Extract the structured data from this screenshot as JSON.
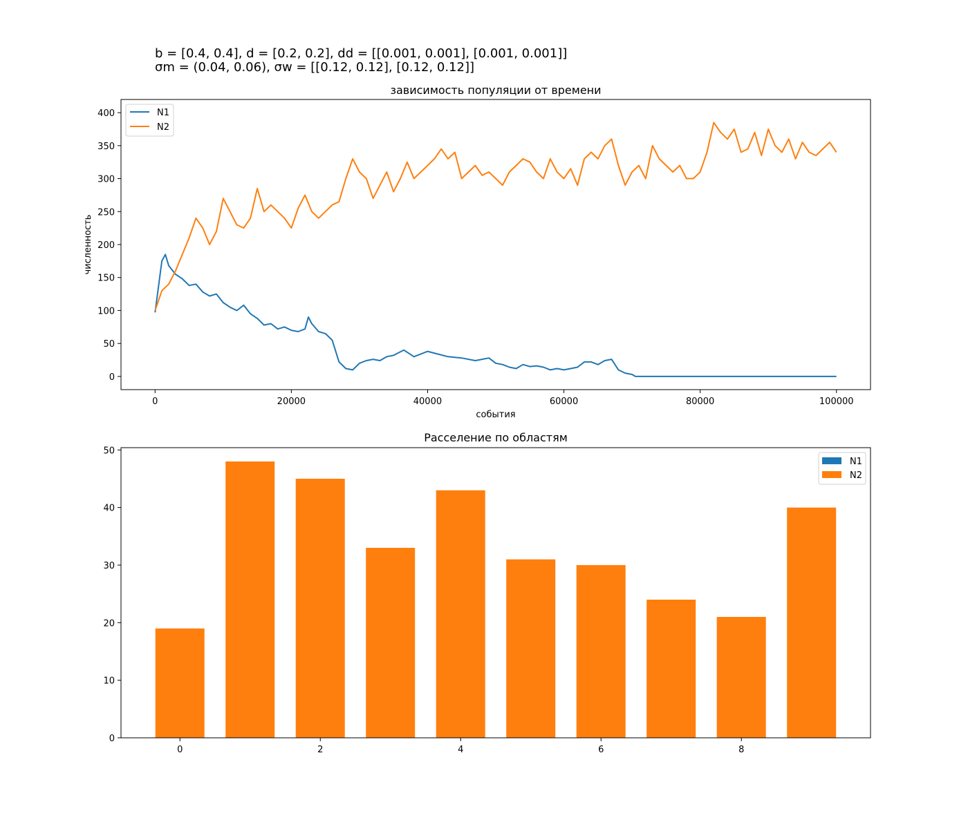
{
  "suptitle": {
    "line1": "b = [0.4, 0.4], d = [0.2, 0.2], dd = [[0.001, 0.001], [0.001, 0.001]]",
    "line2": "σm = (0.04, 0.06), σw = [[0.12, 0.12], [0.12, 0.12]]"
  },
  "colors": {
    "N1": "#1f77b4",
    "N2": "#ff7f0e"
  },
  "chart_data": [
    {
      "type": "line",
      "title": "зависимость популяции от времени",
      "xlabel": "события",
      "ylabel": "численность",
      "xlim": [
        -5000,
        105000
      ],
      "ylim": [
        -20,
        420
      ],
      "xticks": [
        0,
        20000,
        40000,
        60000,
        80000,
        100000
      ],
      "yticks": [
        0,
        50,
        100,
        150,
        200,
        250,
        300,
        350,
        400
      ],
      "legend": "top-left",
      "grid": false,
      "series": [
        {
          "name": "N1",
          "color": "#1f77b4",
          "x": [
            0,
            1000,
            1500,
            2000,
            3000,
            4000,
            5000,
            6000,
            7000,
            8000,
            9000,
            10000,
            11000,
            12000,
            13000,
            14000,
            15000,
            16000,
            17000,
            18000,
            19000,
            20000,
            21000,
            22000,
            22500,
            23000,
            24000,
            25000,
            26000,
            27000,
            28000,
            29000,
            30000,
            31000,
            32000,
            33000,
            34000,
            35000,
            36500,
            38000,
            40000,
            41500,
            43000,
            45000,
            47000,
            48000,
            49000,
            50000,
            51000,
            52000,
            53000,
            54000,
            55000,
            56000,
            57000,
            58000,
            59000,
            60000,
            61000,
            62000,
            63000,
            64000,
            65000,
            66000,
            67000,
            68000,
            69000,
            70000,
            70500,
            75000,
            80000,
            85000,
            90000,
            95000,
            100000
          ],
          "y": [
            97,
            175,
            185,
            168,
            155,
            148,
            138,
            140,
            128,
            122,
            125,
            112,
            105,
            100,
            108,
            95,
            88,
            78,
            80,
            72,
            75,
            70,
            68,
            72,
            90,
            80,
            68,
            65,
            55,
            22,
            12,
            10,
            20,
            24,
            26,
            24,
            30,
            32,
            40,
            30,
            38,
            34,
            30,
            28,
            24,
            26,
            28,
            20,
            18,
            14,
            12,
            18,
            15,
            16,
            14,
            10,
            12,
            10,
            12,
            14,
            22,
            22,
            18,
            24,
            26,
            10,
            5,
            3,
            0,
            0,
            0,
            0,
            0,
            0,
            0
          ]
        },
        {
          "name": "N2",
          "color": "#ff7f0e",
          "x": [
            0,
            1000,
            2000,
            3000,
            4000,
            5000,
            6000,
            7000,
            8000,
            9000,
            10000,
            11000,
            12000,
            13000,
            14000,
            15000,
            16000,
            17000,
            18000,
            19000,
            20000,
            21000,
            22000,
            23000,
            24000,
            25000,
            26000,
            27000,
            28000,
            29000,
            30000,
            31000,
            32000,
            33000,
            34000,
            35000,
            36000,
            37000,
            38000,
            39000,
            40000,
            41000,
            42000,
            43000,
            44000,
            45000,
            46000,
            47000,
            48000,
            49000,
            50000,
            51000,
            52000,
            53000,
            54000,
            55000,
            56000,
            57000,
            58000,
            59000,
            60000,
            61000,
            62000,
            63000,
            64000,
            65000,
            66000,
            67000,
            68000,
            69000,
            70000,
            71000,
            72000,
            73000,
            74000,
            75000,
            76000,
            77000,
            78000,
            79000,
            80000,
            81000,
            82000,
            83000,
            84000,
            85000,
            86000,
            87000,
            88000,
            89000,
            90000,
            91000,
            92000,
            93000,
            94000,
            95000,
            96000,
            97000,
            98000,
            99000,
            100000
          ],
          "y": [
            100,
            130,
            140,
            160,
            185,
            210,
            240,
            225,
            200,
            220,
            270,
            250,
            230,
            225,
            240,
            285,
            250,
            260,
            250,
            240,
            225,
            255,
            275,
            250,
            240,
            250,
            260,
            265,
            300,
            330,
            310,
            300,
            270,
            290,
            310,
            280,
            300,
            325,
            300,
            310,
            320,
            330,
            345,
            330,
            340,
            300,
            310,
            320,
            305,
            310,
            300,
            290,
            310,
            320,
            330,
            325,
            310,
            300,
            330,
            310,
            300,
            315,
            290,
            330,
            340,
            330,
            350,
            360,
            320,
            290,
            310,
            320,
            300,
            350,
            330,
            320,
            310,
            320,
            300,
            300,
            310,
            340,
            385,
            370,
            360,
            375,
            340,
            345,
            370,
            335,
            375,
            350,
            340,
            360,
            330,
            355,
            340,
            335,
            345,
            355,
            340
          ]
        }
      ]
    },
    {
      "type": "bar",
      "title": "Расселение по областям",
      "xlim": [
        -0.84,
        9.84
      ],
      "ylim": [
        0,
        50.4
      ],
      "xticks": [
        0,
        2,
        4,
        6,
        8
      ],
      "yticks": [
        0,
        10,
        20,
        30,
        40,
        50
      ],
      "legend": "top-right",
      "grid": false,
      "categories": [
        0,
        1,
        2,
        3,
        4,
        5,
        6,
        7,
        8,
        9
      ],
      "series": [
        {
          "name": "N1",
          "color": "#1f77b4",
          "values": [
            0,
            0,
            0,
            0,
            0,
            0,
            0,
            0,
            0,
            0
          ]
        },
        {
          "name": "N2",
          "color": "#ff7f0e",
          "values": [
            19,
            48,
            45,
            33,
            43,
            31,
            30,
            24,
            21,
            40
          ]
        }
      ]
    }
  ]
}
